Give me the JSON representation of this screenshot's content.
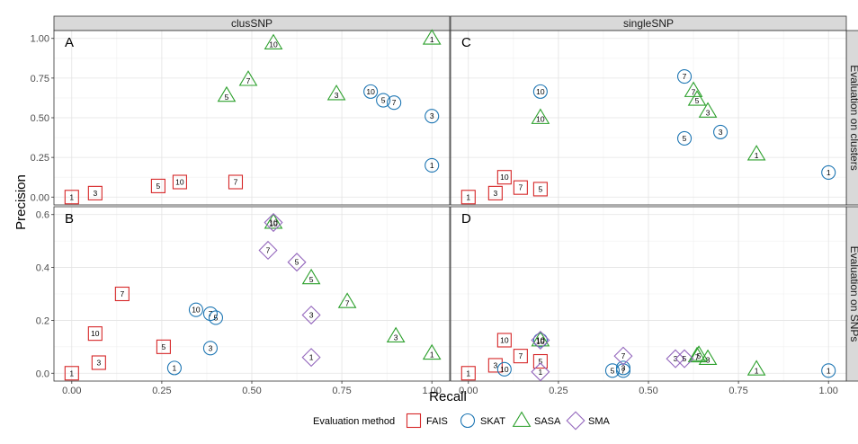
{
  "chart_data": {
    "type": "scatter",
    "xlabel": "Recall",
    "ylabel": "Precision",
    "columns": [
      "clusSNP",
      "singleSNP"
    ],
    "rows": [
      "Evaluation on clusters",
      "Evaluation on SNPs"
    ],
    "xlim": [
      0,
      1
    ],
    "x_ticks": [
      0.0,
      0.25,
      0.5,
      0.75,
      1.0
    ],
    "x_tick_labels": [
      "0.00",
      "0.25",
      "0.50",
      "0.75",
      "1.00"
    ],
    "row_y": [
      {
        "ylim": [
          0,
          1
        ],
        "ticks": [
          0,
          0.25,
          0.5,
          0.75,
          1.0
        ],
        "tick_labels": [
          "0.00",
          "0.25",
          "0.50",
          "0.75",
          "1.00"
        ]
      },
      {
        "ylim": [
          0,
          0.6
        ],
        "ticks": [
          0,
          0.2,
          0.4,
          0.6
        ],
        "tick_labels": [
          "0.0",
          "0.2",
          "0.4",
          "0.6"
        ]
      }
    ],
    "grid": true,
    "legend": {
      "title": "Evaluation method",
      "placement": "bottom",
      "entries": [
        {
          "name": "FAIS",
          "shape": "square",
          "color": "#d62728"
        },
        {
          "name": "SKAT",
          "shape": "circle",
          "color": "#1f77b4"
        },
        {
          "name": "SASA",
          "shape": "triangle",
          "color": "#2ca02c"
        },
        {
          "name": "SMA",
          "shape": "diamond",
          "color": "#9467bd"
        }
      ]
    },
    "panels": [
      {
        "letter": "A",
        "column": 0,
        "row": 0,
        "points": [
          {
            "method": "FAIS",
            "label": "1",
            "x": 0.0,
            "y": 0.0
          },
          {
            "method": "FAIS",
            "label": "3",
            "x": 0.065,
            "y": 0.025
          },
          {
            "method": "FAIS",
            "label": "5",
            "x": 0.24,
            "y": 0.07
          },
          {
            "method": "FAIS",
            "label": "10",
            "x": 0.3,
            "y": 0.095
          },
          {
            "method": "FAIS",
            "label": "7",
            "x": 0.455,
            "y": 0.095
          },
          {
            "method": "SKAT",
            "label": "1",
            "x": 1.0,
            "y": 0.2
          },
          {
            "method": "SKAT",
            "label": "3",
            "x": 1.0,
            "y": 0.51
          },
          {
            "method": "SKAT",
            "label": "5",
            "x": 0.865,
            "y": 0.61
          },
          {
            "method": "SKAT",
            "label": "7",
            "x": 0.895,
            "y": 0.595
          },
          {
            "method": "SKAT",
            "label": "10",
            "x": 0.83,
            "y": 0.665
          },
          {
            "method": "SASA",
            "label": "1",
            "x": 1.0,
            "y": 1.0
          },
          {
            "method": "SASA",
            "label": "10",
            "x": 0.56,
            "y": 0.97
          },
          {
            "method": "SASA",
            "label": "7",
            "x": 0.49,
            "y": 0.74
          },
          {
            "method": "SASA",
            "label": "5",
            "x": 0.43,
            "y": 0.64
          },
          {
            "method": "SASA",
            "label": "3",
            "x": 0.735,
            "y": 0.65
          }
        ]
      },
      {
        "letter": "C",
        "column": 1,
        "row": 0,
        "points": [
          {
            "method": "FAIS",
            "label": "1",
            "x": 0.0,
            "y": 0.0
          },
          {
            "method": "FAIS",
            "label": "3",
            "x": 0.075,
            "y": 0.025
          },
          {
            "method": "FAIS",
            "label": "10",
            "x": 0.1,
            "y": 0.125
          },
          {
            "method": "FAIS",
            "label": "7",
            "x": 0.145,
            "y": 0.06
          },
          {
            "method": "FAIS",
            "label": "5",
            "x": 0.2,
            "y": 0.05
          },
          {
            "method": "SKAT",
            "label": "10",
            "x": 0.2,
            "y": 0.665
          },
          {
            "method": "SKAT",
            "label": "7",
            "x": 0.6,
            "y": 0.76
          },
          {
            "method": "SKAT",
            "label": "5",
            "x": 0.6,
            "y": 0.37
          },
          {
            "method": "SKAT",
            "label": "3",
            "x": 0.7,
            "y": 0.41
          },
          {
            "method": "SKAT",
            "label": "1",
            "x": 1.0,
            "y": 0.155
          },
          {
            "method": "SASA",
            "label": "10",
            "x": 0.2,
            "y": 0.5
          },
          {
            "method": "SASA",
            "label": "7",
            "x": 0.625,
            "y": 0.67
          },
          {
            "method": "SASA",
            "label": "5",
            "x": 0.635,
            "y": 0.615
          },
          {
            "method": "SASA",
            "label": "3",
            "x": 0.665,
            "y": 0.54
          },
          {
            "method": "SASA",
            "label": "1",
            "x": 0.8,
            "y": 0.27
          }
        ]
      },
      {
        "letter": "B",
        "column": 0,
        "row": 1,
        "points": [
          {
            "method": "FAIS",
            "label": "1",
            "x": 0.0,
            "y": 0.0
          },
          {
            "method": "FAIS",
            "label": "3",
            "x": 0.075,
            "y": 0.04
          },
          {
            "method": "FAIS",
            "label": "10",
            "x": 0.065,
            "y": 0.15
          },
          {
            "method": "FAIS",
            "label": "5",
            "x": 0.255,
            "y": 0.1
          },
          {
            "method": "FAIS",
            "label": "7",
            "x": 0.14,
            "y": 0.3
          },
          {
            "method": "SKAT",
            "label": "1",
            "x": 0.285,
            "y": 0.02
          },
          {
            "method": "SKAT",
            "label": "3",
            "x": 0.385,
            "y": 0.095
          },
          {
            "method": "SKAT",
            "label": "10",
            "x": 0.345,
            "y": 0.24
          },
          {
            "method": "SKAT",
            "label": "7",
            "x": 0.385,
            "y": 0.225
          },
          {
            "method": "SKAT",
            "label": "5",
            "x": 0.4,
            "y": 0.21
          },
          {
            "method": "SASA",
            "label": "10",
            "x": 0.56,
            "y": 0.57
          },
          {
            "method": "SASA",
            "label": "5",
            "x": 0.665,
            "y": 0.36
          },
          {
            "method": "SASA",
            "label": "7",
            "x": 0.765,
            "y": 0.27
          },
          {
            "method": "SASA",
            "label": "3",
            "x": 0.9,
            "y": 0.14
          },
          {
            "method": "SASA",
            "label": "1",
            "x": 1.0,
            "y": 0.075
          },
          {
            "method": "SMA",
            "label": "10",
            "x": 0.56,
            "y": 0.57
          },
          {
            "method": "SMA",
            "label": "7",
            "x": 0.545,
            "y": 0.465
          },
          {
            "method": "SMA",
            "label": "5",
            "x": 0.625,
            "y": 0.42
          },
          {
            "method": "SMA",
            "label": "3",
            "x": 0.665,
            "y": 0.22
          },
          {
            "method": "SMA",
            "label": "1",
            "x": 0.665,
            "y": 0.06
          }
        ]
      },
      {
        "letter": "D",
        "column": 1,
        "row": 1,
        "points": [
          {
            "method": "FAIS",
            "label": "1",
            "x": 0.0,
            "y": 0.0
          },
          {
            "method": "FAIS",
            "label": "3",
            "x": 0.075,
            "y": 0.03
          },
          {
            "method": "FAIS",
            "label": "10",
            "x": 0.1,
            "y": 0.125
          },
          {
            "method": "FAIS",
            "label": "7",
            "x": 0.145,
            "y": 0.065
          },
          {
            "method": "FAIS",
            "label": "5",
            "x": 0.2,
            "y": 0.045
          },
          {
            "method": "SKAT",
            "label": "10",
            "x": 0.1,
            "y": 0.015
          },
          {
            "method": "SKAT",
            "label": "10",
            "x": 0.2,
            "y": 0.125
          },
          {
            "method": "SKAT",
            "label": "5",
            "x": 0.4,
            "y": 0.01
          },
          {
            "method": "SKAT",
            "label": "7",
            "x": 0.43,
            "y": 0.01
          },
          {
            "method": "SKAT",
            "label": "3",
            "x": 0.43,
            "y": 0.02
          },
          {
            "method": "SKAT",
            "label": "1",
            "x": 1.0,
            "y": 0.01
          },
          {
            "method": "SASA",
            "label": "10",
            "x": 0.2,
            "y": 0.125
          },
          {
            "method": "SASA",
            "label": "7",
            "x": 0.635,
            "y": 0.065
          },
          {
            "method": "SASA",
            "label": "5",
            "x": 0.64,
            "y": 0.07
          },
          {
            "method": "SASA",
            "label": "3",
            "x": 0.665,
            "y": 0.055
          },
          {
            "method": "SASA",
            "label": "1",
            "x": 0.8,
            "y": 0.015
          },
          {
            "method": "SMA",
            "label": "10",
            "x": 0.2,
            "y": 0.125
          },
          {
            "method": "SMA",
            "label": "1",
            "x": 0.2,
            "y": 0.005
          },
          {
            "method": "SMA",
            "label": "7",
            "x": 0.43,
            "y": 0.065
          },
          {
            "method": "SMA",
            "label": "3",
            "x": 0.575,
            "y": 0.055
          },
          {
            "method": "SMA",
            "label": "5",
            "x": 0.6,
            "y": 0.055
          }
        ]
      }
    ]
  }
}
